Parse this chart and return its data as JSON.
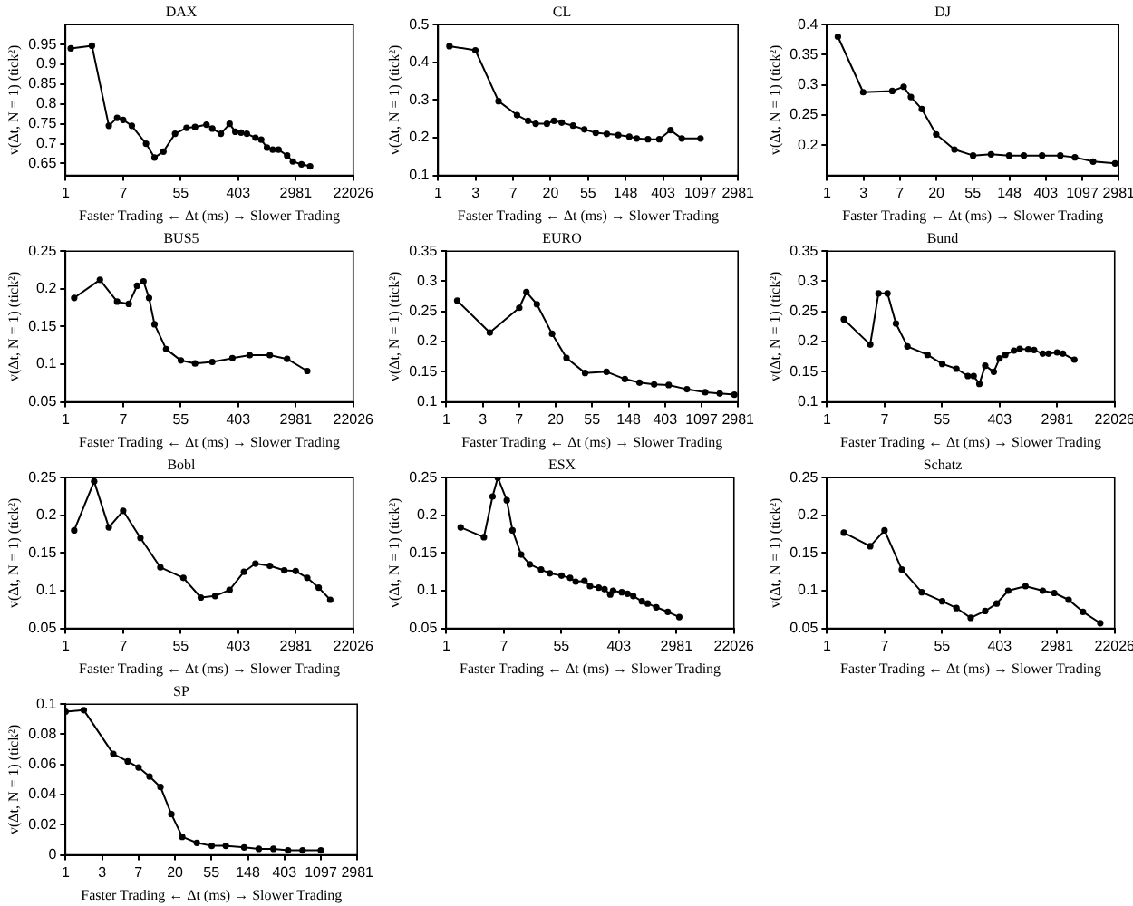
{
  "chart_data": [
    {
      "type": "line",
      "title": "DAX",
      "xlabel": "Faster Trading ← Δt (ms) → Slower Trading",
      "ylabel": "v(Δt, N = 1) (tick²)",
      "log": "x",
      "marker": "circle",
      "line_style": "solid",
      "x": [
        1.2,
        2.5,
        4.5,
        6.0,
        7.4,
        10,
        16.4,
        22,
        30,
        45,
        67,
        90,
        134,
        164,
        221,
        299,
        365,
        446,
        545,
        735,
        898,
        1097,
        1340,
        1640,
        2210,
        2700,
        3640,
        4915
      ],
      "series": [
        {
          "color": "#000000",
          "values": [
            0.94,
            0.947,
            0.745,
            0.765,
            0.76,
            0.745,
            0.7,
            0.665,
            0.68,
            0.725,
            0.74,
            0.742,
            0.748,
            0.738,
            0.725,
            0.75,
            0.73,
            0.728,
            0.725,
            0.715,
            0.71,
            0.69,
            0.685,
            0.685,
            0.67,
            0.655,
            0.648,
            0.643
          ]
        }
      ],
      "xlim": [
        1,
        22026
      ],
      "xticks": [
        1,
        {
          "value": 7.389,
          "label": "7"
        },
        {
          "value": 54.6,
          "label": "55"
        },
        {
          "value": 403.4,
          "label": "403"
        },
        2981,
        22026
      ],
      "ylim": [
        0.62,
        1.0
      ],
      "yticks": [
        0.65,
        0.7,
        0.75,
        0.8,
        0.85,
        0.9,
        0.95
      ]
    },
    {
      "type": "line",
      "title": "CL",
      "xlabel": "Faster Trading ← Δt (ms) → Slower Trading",
      "ylabel": "v(Δt, N = 1) (tick²)",
      "log": "x",
      "marker": "circle",
      "line_style": "solid",
      "x": [
        1.35,
        2.7,
        5.0,
        8.2,
        11,
        13.5,
        18.2,
        22,
        27,
        36.6,
        49.4,
        67,
        90,
        122,
        164,
        200,
        270,
        365,
        493,
        665,
        1097
      ],
      "series": [
        {
          "color": "#000000",
          "values": [
            0.443,
            0.432,
            0.297,
            0.26,
            0.245,
            0.237,
            0.237,
            0.245,
            0.24,
            0.232,
            0.222,
            0.213,
            0.21,
            0.207,
            0.203,
            0.198,
            0.196,
            0.196,
            0.22,
            0.198,
            0.198
          ]
        }
      ],
      "xlim": [
        1,
        2981
      ],
      "xticks": [
        1,
        {
          "value": 2.718,
          "label": "3"
        },
        {
          "value": 7.389,
          "label": "7"
        },
        {
          "value": 20.09,
          "label": "20"
        },
        {
          "value": 54.6,
          "label": "55"
        },
        {
          "value": 148.4,
          "label": "148"
        },
        {
          "value": 403.4,
          "label": "403"
        },
        1097,
        2981
      ],
      "ylim": [
        0.1,
        0.5
      ],
      "yticks": [
        0.1,
        0.2,
        0.3,
        0.4,
        0.5
      ]
    },
    {
      "type": "line",
      "title": "DJ",
      "xlabel": "Faster Trading ← Δt (ms) → Slower Trading",
      "ylabel": "v(Δt, N = 1) (tick²)",
      "log": "x",
      "marker": "circle",
      "line_style": "solid",
      "x": [
        1.35,
        2.7,
        6.0,
        8.2,
        10,
        13.5,
        20,
        33,
        55,
        90,
        148,
        221,
        365,
        602,
        898,
        1480,
        2700
      ],
      "series": [
        {
          "color": "#000000",
          "values": [
            0.38,
            0.288,
            0.29,
            0.297,
            0.28,
            0.26,
            0.218,
            0.193,
            0.183,
            0.185,
            0.183,
            0.183,
            0.183,
            0.183,
            0.18,
            0.173,
            0.17
          ]
        }
      ],
      "xlim": [
        1,
        2981
      ],
      "xticks": [
        1,
        {
          "value": 2.718,
          "label": "3"
        },
        {
          "value": 7.389,
          "label": "7"
        },
        {
          "value": 20.09,
          "label": "20"
        },
        {
          "value": 54.6,
          "label": "55"
        },
        {
          "value": 148.4,
          "label": "148"
        },
        {
          "value": 403.4,
          "label": "403"
        },
        1097,
        2981
      ],
      "ylim": [
        0.15,
        0.4
      ],
      "yticks": [
        0.2,
        0.25,
        0.3,
        0.35,
        0.4
      ]
    },
    {
      "type": "line",
      "title": "BUS5",
      "xlabel": "Faster Trading ← Δt (ms) → Slower Trading",
      "ylabel": "v(Δt, N = 1) (tick²)",
      "log": "x",
      "marker": "circle",
      "line_style": "solid",
      "x": [
        1.35,
        3.3,
        6.0,
        9.0,
        12,
        15,
        18.2,
        22,
        33,
        55,
        90,
        164,
        330,
        602,
        1212,
        2210,
        4450
      ],
      "series": [
        {
          "color": "#000000",
          "values": [
            0.188,
            0.212,
            0.183,
            0.18,
            0.204,
            0.21,
            0.188,
            0.153,
            0.12,
            0.105,
            0.101,
            0.103,
            0.108,
            0.112,
            0.112,
            0.107,
            0.091
          ]
        }
      ],
      "xlim": [
        1,
        22026
      ],
      "xticks": [
        1,
        {
          "value": 7.389,
          "label": "7"
        },
        {
          "value": 54.6,
          "label": "55"
        },
        {
          "value": 403.4,
          "label": "403"
        },
        2981,
        22026
      ],
      "ylim": [
        0.05,
        0.25
      ],
      "yticks": [
        0.05,
        0.1,
        0.15,
        0.2,
        0.25
      ]
    },
    {
      "type": "line",
      "title": "EURO",
      "xlabel": "Faster Trading ← Δt (ms) → Slower Trading",
      "ylabel": "v(Δt, N = 1) (tick²)",
      "log": "x",
      "marker": "circle",
      "line_style": "solid",
      "x": [
        1.35,
        3.3,
        7.4,
        9.0,
        12,
        18.2,
        27,
        45,
        81,
        134,
        200,
        299,
        446,
        735,
        1212,
        1808,
        2700
      ],
      "series": [
        {
          "color": "#000000",
          "values": [
            0.268,
            0.215,
            0.256,
            0.282,
            0.262,
            0.213,
            0.173,
            0.148,
            0.15,
            0.138,
            0.132,
            0.129,
            0.128,
            0.121,
            0.116,
            0.114,
            0.112
          ]
        }
      ],
      "xlim": [
        1,
        2981
      ],
      "xticks": [
        1,
        {
          "value": 2.718,
          "label": "3"
        },
        {
          "value": 7.389,
          "label": "7"
        },
        {
          "value": 20.09,
          "label": "20"
        },
        {
          "value": 54.6,
          "label": "55"
        },
        {
          "value": 148.4,
          "label": "148"
        },
        {
          "value": 403.4,
          "label": "403"
        },
        1097,
        2981
      ],
      "ylim": [
        0.1,
        0.35
      ],
      "yticks": [
        0.1,
        0.15,
        0.2,
        0.25,
        0.3,
        0.35
      ]
    },
    {
      "type": "line",
      "title": "Bund",
      "xlabel": "Faster Trading ← Δt (ms) → Slower Trading",
      "ylabel": "v(Δt, N = 1) (tick²)",
      "log": "x",
      "marker": "circle",
      "line_style": "solid",
      "x": [
        1.8,
        4.5,
        6.0,
        8.2,
        11,
        16.4,
        33,
        55,
        90,
        134,
        164,
        200,
        245,
        330,
        403,
        493,
        665,
        812,
        1097,
        1340,
        1808,
        2210,
        2981,
        3640,
        5430
      ],
      "series": [
        {
          "color": "#000000",
          "values": [
            0.237,
            0.195,
            0.28,
            0.28,
            0.23,
            0.192,
            0.178,
            0.163,
            0.155,
            0.143,
            0.143,
            0.13,
            0.16,
            0.15,
            0.172,
            0.178,
            0.185,
            0.188,
            0.187,
            0.186,
            0.18,
            0.18,
            0.182,
            0.18,
            0.17
          ]
        }
      ],
      "xlim": [
        1,
        22026
      ],
      "xticks": [
        1,
        {
          "value": 7.389,
          "label": "7"
        },
        {
          "value": 54.6,
          "label": "55"
        },
        {
          "value": 403.4,
          "label": "403"
        },
        2981,
        22026
      ],
      "ylim": [
        0.1,
        0.35
      ],
      "yticks": [
        0.1,
        0.15,
        0.2,
        0.25,
        0.3,
        0.35
      ]
    },
    {
      "type": "line",
      "title": "Bobl",
      "xlabel": "Faster Trading ← Δt (ms) → Slower Trading",
      "ylabel": "v(Δt, N = 1) (tick²)",
      "log": "x",
      "marker": "circle",
      "line_style": "solid",
      "x": [
        1.35,
        2.7,
        4.5,
        7.4,
        13.5,
        27,
        60,
        110,
        181,
        299,
        493,
        735,
        1212,
        2000,
        2981,
        4450,
        6630,
        9900
      ],
      "series": [
        {
          "color": "#000000",
          "values": [
            0.18,
            0.245,
            0.184,
            0.206,
            0.17,
            0.131,
            0.117,
            0.091,
            0.093,
            0.101,
            0.125,
            0.136,
            0.133,
            0.127,
            0.126,
            0.117,
            0.104,
            0.088
          ]
        }
      ],
      "xlim": [
        1,
        22026
      ],
      "xticks": [
        1,
        {
          "value": 7.389,
          "label": "7"
        },
        {
          "value": 54.6,
          "label": "55"
        },
        {
          "value": 403.4,
          "label": "403"
        },
        2981,
        22026
      ],
      "ylim": [
        0.05,
        0.25
      ],
      "yticks": [
        0.05,
        0.1,
        0.15,
        0.2,
        0.25
      ]
    },
    {
      "type": "line",
      "title": "ESX",
      "xlabel": "Faster Trading ← Δt (ms) → Slower Trading",
      "ylabel": "v(Δt, N = 1) (tick²)",
      "log": "x",
      "marker": "circle",
      "line_style": "solid",
      "x": [
        1.65,
        3.7,
        5.0,
        6.0,
        8.2,
        10,
        13.5,
        18.2,
        27,
        36.6,
        55,
        74,
        90,
        122,
        148,
        200,
        245,
        299,
        330,
        446,
        545,
        665,
        898,
        1097,
        1480,
        2210,
        3290
      ],
      "series": [
        {
          "color": "#000000",
          "values": [
            0.184,
            0.171,
            0.225,
            0.25,
            0.22,
            0.18,
            0.148,
            0.135,
            0.128,
            0.123,
            0.12,
            0.117,
            0.112,
            0.113,
            0.106,
            0.104,
            0.102,
            0.095,
            0.1,
            0.098,
            0.096,
            0.093,
            0.086,
            0.083,
            0.078,
            0.072,
            0.065
          ]
        }
      ],
      "xlim": [
        1,
        22026
      ],
      "xticks": [
        1,
        {
          "value": 7.389,
          "label": "7"
        },
        {
          "value": 54.6,
          "label": "55"
        },
        {
          "value": 403.4,
          "label": "403"
        },
        2981,
        22026
      ],
      "ylim": [
        0.05,
        0.25
      ],
      "yticks": [
        0.05,
        0.1,
        0.15,
        0.2,
        0.25
      ]
    },
    {
      "type": "line",
      "title": "Schatz",
      "xlabel": "Faster Trading ← Δt (ms) → Slower Trading",
      "ylabel": "v(Δt, N = 1) (tick²)",
      "log": "x",
      "marker": "circle",
      "line_style": "solid",
      "x": [
        1.8,
        4.5,
        7.4,
        13.5,
        27,
        55,
        90,
        148,
        245,
        365,
        545,
        992,
        1808,
        2700,
        4450,
        7330,
        13360
      ],
      "series": [
        {
          "color": "#000000",
          "values": [
            0.177,
            0.159,
            0.18,
            0.128,
            0.098,
            0.086,
            0.077,
            0.064,
            0.073,
            0.083,
            0.1,
            0.106,
            0.1,
            0.097,
            0.088,
            0.072,
            0.057
          ]
        }
      ],
      "xlim": [
        1,
        22026
      ],
      "xticks": [
        1,
        {
          "value": 7.389,
          "label": "7"
        },
        {
          "value": 54.6,
          "label": "55"
        },
        {
          "value": 403.4,
          "label": "403"
        },
        2981,
        22026
      ],
      "ylim": [
        0.05,
        0.25
      ],
      "yticks": [
        0.05,
        0.1,
        0.15,
        0.2,
        0.25
      ]
    },
    {
      "type": "line",
      "title": "SP",
      "xlabel": "Faster Trading ← Δt (ms) → Slower Trading",
      "ylabel": "v(Δt, N = 1) (tick²)",
      "log": "x",
      "marker": "circle",
      "line_style": "solid",
      "x": [
        1,
        1.65,
        3.7,
        5.5,
        7.4,
        10,
        13.5,
        18.2,
        24.5,
        36.6,
        55,
        81,
        134,
        200,
        299,
        446,
        665,
        1097
      ],
      "series": [
        {
          "color": "#000000",
          "values": [
            0.095,
            0.096,
            0.067,
            0.062,
            0.058,
            0.052,
            0.045,
            0.027,
            0.012,
            0.008,
            0.006,
            0.006,
            0.005,
            0.004,
            0.004,
            0.003,
            0.003,
            0.003
          ]
        }
      ],
      "xlim": [
        1,
        2981
      ],
      "xticks": [
        1,
        {
          "value": 2.718,
          "label": "3"
        },
        {
          "value": 7.389,
          "label": "7"
        },
        {
          "value": 20.09,
          "label": "20"
        },
        {
          "value": 54.6,
          "label": "55"
        },
        {
          "value": 148.4,
          "label": "148"
        },
        {
          "value": 403.4,
          "label": "403"
        },
        1097,
        2981
      ],
      "ylim": [
        0,
        0.1
      ],
      "yticks": [
        0,
        0.02,
        0.04,
        0.06,
        0.08,
        0.1
      ]
    }
  ]
}
